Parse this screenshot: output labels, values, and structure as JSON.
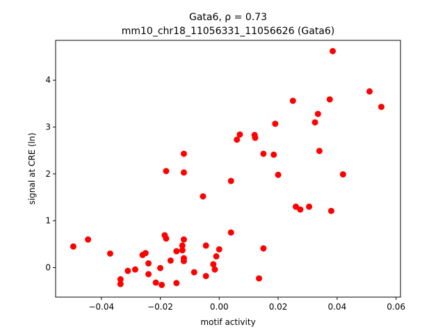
{
  "chart_data": {
    "type": "scatter",
    "title_line1": "Gata6, ρ = 0.73",
    "title_line2": "mm10_chr18_11056331_11056626 (Gata6)",
    "xlabel": "motif activity",
    "ylabel": "signal at CRE (ln)",
    "xlim": [
      -0.0555,
      0.0615
    ],
    "ylim": [
      -0.63,
      4.85
    ],
    "xticks": [
      -0.04,
      -0.02,
      0.0,
      0.02,
      0.04,
      0.06
    ],
    "xtick_labels": [
      "−0.04",
      "−0.02",
      "0.00",
      "0.02",
      "0.04",
      "0.06"
    ],
    "yticks": [
      0,
      1,
      2,
      3,
      4
    ],
    "ytick_labels": [
      "0",
      "1",
      "2",
      "3",
      "4"
    ],
    "grid": false,
    "marker_color": "#ff0000",
    "points": [
      {
        "x": -0.0495,
        "y": 0.45
      },
      {
        "x": -0.0445,
        "y": 0.6
      },
      {
        "x": -0.037,
        "y": 0.3
      },
      {
        "x": -0.0335,
        "y": -0.25
      },
      {
        "x": -0.0335,
        "y": -0.35
      },
      {
        "x": -0.031,
        "y": -0.07
      },
      {
        "x": -0.0285,
        "y": -0.04
      },
      {
        "x": -0.026,
        "y": 0.27
      },
      {
        "x": -0.025,
        "y": 0.31
      },
      {
        "x": -0.024,
        "y": 0.09
      },
      {
        "x": -0.024,
        "y": -0.14
      },
      {
        "x": -0.0215,
        "y": -0.32
      },
      {
        "x": -0.02,
        "y": -0.01
      },
      {
        "x": -0.0195,
        "y": -0.37
      },
      {
        "x": -0.0185,
        "y": 0.69
      },
      {
        "x": -0.018,
        "y": 2.06
      },
      {
        "x": -0.018,
        "y": 0.62
      },
      {
        "x": -0.0165,
        "y": 0.15
      },
      {
        "x": -0.0145,
        "y": -0.33
      },
      {
        "x": -0.0145,
        "y": 0.35
      },
      {
        "x": -0.0125,
        "y": 0.47
      },
      {
        "x": -0.0125,
        "y": 0.37
      },
      {
        "x": -0.012,
        "y": 2.03
      },
      {
        "x": -0.012,
        "y": 2.43
      },
      {
        "x": -0.012,
        "y": 0.6
      },
      {
        "x": -0.012,
        "y": 0.2
      },
      {
        "x": -0.012,
        "y": 0.14
      },
      {
        "x": -0.0085,
        "y": -0.1
      },
      {
        "x": -0.0055,
        "y": 1.52
      },
      {
        "x": -0.0045,
        "y": 0.47
      },
      {
        "x": -0.0045,
        "y": -0.18
      },
      {
        "x": -0.002,
        "y": 0.07
      },
      {
        "x": -0.0015,
        "y": -0.04
      },
      {
        "x": -0.001,
        "y": 0.24
      },
      {
        "x": 0.0,
        "y": 0.39
      },
      {
        "x": 0.004,
        "y": 1.85
      },
      {
        "x": 0.004,
        "y": 0.75
      },
      {
        "x": 0.006,
        "y": 2.73
      },
      {
        "x": 0.007,
        "y": 2.84
      },
      {
        "x": 0.012,
        "y": 2.83
      },
      {
        "x": 0.0122,
        "y": 2.77
      },
      {
        "x": 0.0135,
        "y": -0.23
      },
      {
        "x": 0.015,
        "y": 2.43
      },
      {
        "x": 0.015,
        "y": 0.41
      },
      {
        "x": 0.0185,
        "y": 2.41
      },
      {
        "x": 0.019,
        "y": 3.07
      },
      {
        "x": 0.02,
        "y": 1.98
      },
      {
        "x": 0.025,
        "y": 3.56
      },
      {
        "x": 0.026,
        "y": 1.3
      },
      {
        "x": 0.0275,
        "y": 1.24
      },
      {
        "x": 0.0305,
        "y": 1.3
      },
      {
        "x": 0.0325,
        "y": 3.1
      },
      {
        "x": 0.0335,
        "y": 3.28
      },
      {
        "x": 0.034,
        "y": 2.49
      },
      {
        "x": 0.0375,
        "y": 3.59
      },
      {
        "x": 0.038,
        "y": 1.21
      },
      {
        "x": 0.0385,
        "y": 4.62
      },
      {
        "x": 0.042,
        "y": 1.99
      },
      {
        "x": 0.051,
        "y": 3.76
      },
      {
        "x": 0.055,
        "y": 3.43
      }
    ]
  }
}
